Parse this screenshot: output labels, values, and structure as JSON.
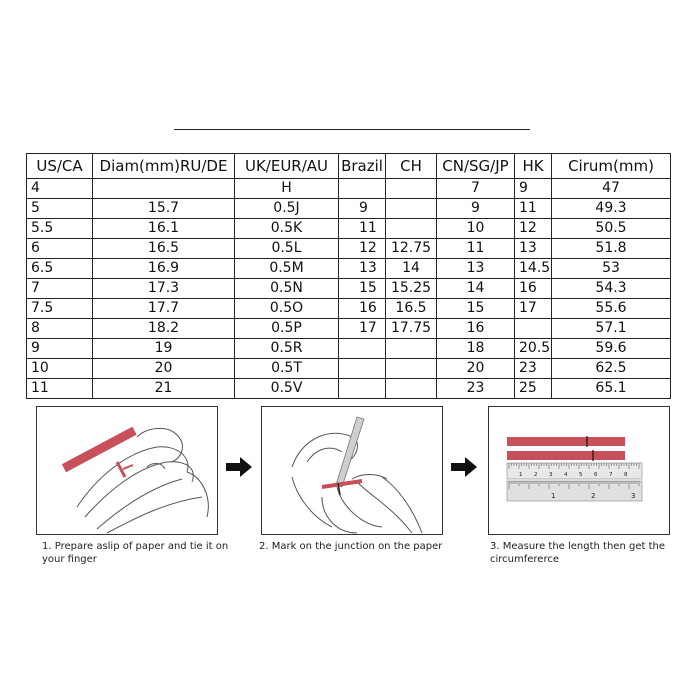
{
  "table": {
    "headers": [
      "US/CA",
      "Diam(mm)RU/DE",
      "UK/EUR/AU",
      "Brazil",
      "CH",
      "CN/SG/JP",
      "HK",
      "Cirum(mm)"
    ],
    "rows": [
      [
        "4",
        "",
        "H",
        "",
        "",
        "7",
        "9",
        "47"
      ],
      [
        "5",
        "15.7",
        "0.5J",
        "9",
        "",
        "9",
        "11",
        "49.3"
      ],
      [
        "5.5",
        "16.1",
        "0.5K",
        "11",
        "",
        "10",
        "12",
        "50.5"
      ],
      [
        "6",
        "16.5",
        "0.5L",
        "12",
        "12.75",
        "11",
        "13",
        "51.8"
      ],
      [
        "6.5",
        "16.9",
        "0.5M",
        "13",
        "14",
        "13",
        "14.5",
        "53"
      ],
      [
        "7",
        "17.3",
        "0.5N",
        "15",
        "15.25",
        "14",
        "16",
        "54.3"
      ],
      [
        "7.5",
        "17.7",
        "0.5O",
        "16",
        "16.5",
        "15",
        "17",
        "55.6"
      ],
      [
        "8",
        "18.2",
        "0.5P",
        "17",
        "17.75",
        "16",
        "",
        "57.1"
      ],
      [
        "9",
        "19",
        "0.5R",
        "",
        "",
        "18",
        "20.5",
        "59.6"
      ],
      [
        "10",
        "20",
        "0.5T",
        "",
        "",
        "20",
        "23",
        "62.5"
      ],
      [
        "11",
        "21",
        "0.5V",
        "",
        "",
        "23",
        "25",
        "65.1"
      ]
    ]
  },
  "steps": [
    {
      "caption": "1. Prepare aslip of paper and tie it on your finger"
    },
    {
      "caption": "2. Mark on the junction on the paper"
    },
    {
      "caption": "3. Measure the length then get the circumfererce"
    }
  ],
  "ruler": {
    "top_numbers": [
      "1",
      "2",
      "3",
      "4",
      "5",
      "6",
      "7",
      "8"
    ],
    "bottom_numbers": [
      "1",
      "2",
      "3"
    ]
  },
  "colors": {
    "paper_strip": "#c8505a",
    "line": "#222222"
  },
  "icons": [
    "right-arrow-icon",
    "right-arrow-icon"
  ]
}
